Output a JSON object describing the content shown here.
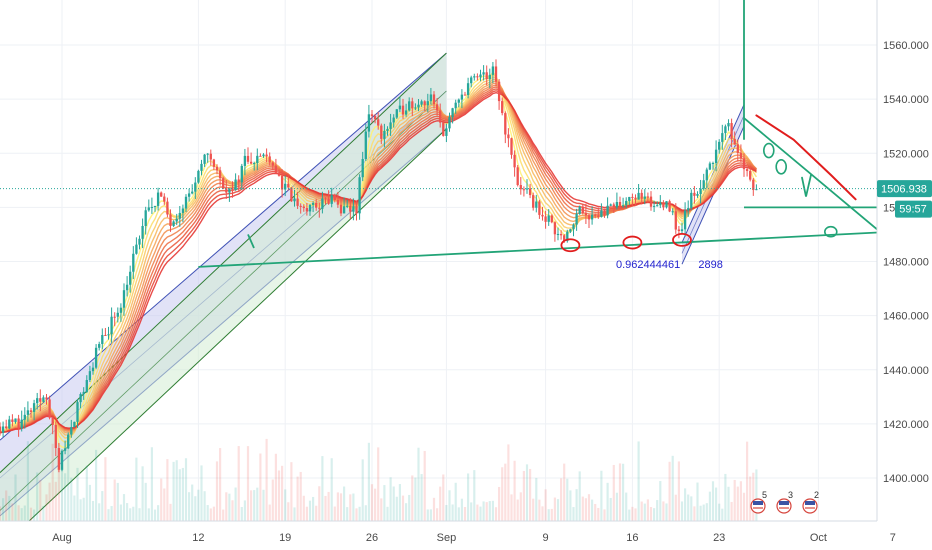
{
  "chart_data": {
    "type": "candlestick",
    "title": "",
    "y_axis": {
      "range": [
        1385,
        1577
      ],
      "ticks": [
        1400,
        1420,
        1440,
        1460,
        1480,
        1500,
        1520,
        1540,
        1560
      ],
      "tick_labels": [
        "1400.000",
        "1420.000",
        "1440.000",
        "1460.000",
        "1480.000",
        "1500.000",
        "1520.000",
        "1540.000",
        "1560.000"
      ],
      "grid": true
    },
    "x_axis": {
      "range": [
        "Jul 27",
        "Oct 7"
      ],
      "tick_labels": [
        {
          "label": "Aug",
          "date": "Aug 1"
        },
        {
          "label": "12",
          "date": "Aug 12"
        },
        {
          "label": "19",
          "date": "Aug 19"
        },
        {
          "label": "26",
          "date": "Aug 26"
        },
        {
          "label": "Sep",
          "date": "Sep 1"
        },
        {
          "label": "9",
          "date": "Sep 9"
        },
        {
          "label": "16",
          "date": "Sep 16"
        },
        {
          "label": "23",
          "date": "Sep 23"
        },
        {
          "label": "Oct",
          "date": "Oct 1"
        },
        {
          "label": "7",
          "date": "Oct 7"
        }
      ],
      "grid": true
    },
    "price_anchors": [
      {
        "date": "Jul 27",
        "price": 1419
      },
      {
        "date": "Jul 29",
        "price": 1421
      },
      {
        "date": "Jul 31",
        "price": 1431
      },
      {
        "date": "Aug 1",
        "price": 1404
      },
      {
        "date": "Aug 2",
        "price": 1420
      },
      {
        "date": "Aug 4",
        "price": 1446
      },
      {
        "date": "Aug 6",
        "price": 1465
      },
      {
        "date": "Aug 8",
        "price": 1497
      },
      {
        "date": "Aug 9",
        "price": 1505
      },
      {
        "date": "Aug 10",
        "price": 1495
      },
      {
        "date": "Aug 12",
        "price": 1508
      },
      {
        "date": "Aug 13",
        "price": 1521
      },
      {
        "date": "Aug 14",
        "price": 1510
      },
      {
        "date": "Aug 15",
        "price": 1505
      },
      {
        "date": "Aug 16",
        "price": 1518
      },
      {
        "date": "Aug 18",
        "price": 1519
      },
      {
        "date": "Aug 19",
        "price": 1508
      },
      {
        "date": "Aug 20",
        "price": 1502
      },
      {
        "date": "Aug 21",
        "price": 1499
      },
      {
        "date": "Aug 23",
        "price": 1503
      },
      {
        "date": "Aug 24",
        "price": 1498
      },
      {
        "date": "Aug 25",
        "price": 1500
      },
      {
        "date": "Aug 26",
        "price": 1536
      },
      {
        "date": "Aug 27",
        "price": 1527
      },
      {
        "date": "Aug 29",
        "price": 1538
      },
      {
        "date": "Aug 31",
        "price": 1540
      },
      {
        "date": "Sep 1",
        "price": 1528
      },
      {
        "date": "Sep 3",
        "price": 1546
      },
      {
        "date": "Sep 5",
        "price": 1550
      },
      {
        "date": "Sep 6",
        "price": 1529
      },
      {
        "date": "Sep 7",
        "price": 1509
      },
      {
        "date": "Sep 8",
        "price": 1503
      },
      {
        "date": "Sep 10",
        "price": 1492
      },
      {
        "date": "Sep 11",
        "price": 1489
      },
      {
        "date": "Sep 12",
        "price": 1500
      },
      {
        "date": "Sep 13",
        "price": 1497
      },
      {
        "date": "Sep 15",
        "price": 1500
      },
      {
        "date": "Sep 16",
        "price": 1505
      },
      {
        "date": "Sep 17",
        "price": 1503
      },
      {
        "date": "Sep 18",
        "price": 1500
      },
      {
        "date": "Sep 19",
        "price": 1503
      },
      {
        "date": "Sep 20",
        "price": 1490
      },
      {
        "date": "Sep 21",
        "price": 1504
      },
      {
        "date": "Sep 22",
        "price": 1509
      },
      {
        "date": "Sep 23",
        "price": 1522
      },
      {
        "date": "Sep 24",
        "price": 1530
      },
      {
        "date": "Sep 25",
        "price": 1519
      },
      {
        "date": "Sep 26",
        "price": 1507
      }
    ],
    "last_price": "1506.938",
    "bar_countdown": "59:57",
    "annotation_text": "0.962444461",
    "annotation_text_tail": "2898",
    "event_counts": [
      "5",
      "3",
      "2"
    ],
    "colors": {
      "up": "#26a69a",
      "down": "#ef5350",
      "price_line": "#26a69a",
      "ribbon_from": "#fff176",
      "ribbon_to": "#e53935",
      "drawing_green": "#22a477",
      "drawing_red": "#e11d1d",
      "annotation_text": "#2323ce"
    },
    "drawings": [
      {
        "kind": "parallel-channel",
        "color": "#3f51b5",
        "fill": "#c9cbf0",
        "baseline": [
          {
            "date": "Jul 27",
            "price": 1414
          },
          {
            "date": "Sep 1",
            "price": 1557
          }
        ],
        "width": 28
      },
      {
        "kind": "parallel-channel",
        "color": "#2e7d32",
        "fill": "#d4ecd4",
        "baseline": [
          {
            "date": "Jul 27",
            "price": 1402
          },
          {
            "date": "Sep 1",
            "price": 1557
          }
        ],
        "width": 28
      },
      {
        "kind": "parallel-channel",
        "color": "#3f51b5",
        "fill": "#c9cbf0",
        "baseline": [
          {
            "date": "Sep 20",
            "price": 1487
          },
          {
            "date": "Sep 25",
            "price": 1538
          }
        ],
        "width": 8
      },
      {
        "kind": "trendline",
        "color": "#22a477",
        "points": [
          {
            "date": "Aug 12",
            "price": 1478
          },
          {
            "date": "Oct 7",
            "price": 1491
          }
        ]
      },
      {
        "kind": "trendline",
        "color": "#22a477",
        "points": [
          {
            "date": "Sep 25",
            "price": 1500
          },
          {
            "date": "Oct 7",
            "price": 1500
          }
        ]
      },
      {
        "kind": "trendline",
        "color": "#22a477",
        "points": [
          {
            "date": "Sep 25",
            "price": 1533
          },
          {
            "date": "Oct 7",
            "price": 1487
          }
        ]
      },
      {
        "kind": "trendline",
        "color": "#22a477",
        "points": [
          {
            "date": "Sep 25",
            "price": 1577
          },
          {
            "date": "Sep 25",
            "price": 1525
          }
        ]
      },
      {
        "kind": "brush",
        "color": "#e11d1d",
        "points": [
          {
            "date": "Sep 26",
            "price": 1534
          },
          {
            "date": "Sep 29",
            "price": 1525
          },
          {
            "date": "Oct 2",
            "price": 1512
          },
          {
            "date": "Oct 4",
            "price": 1503
          }
        ]
      }
    ]
  }
}
